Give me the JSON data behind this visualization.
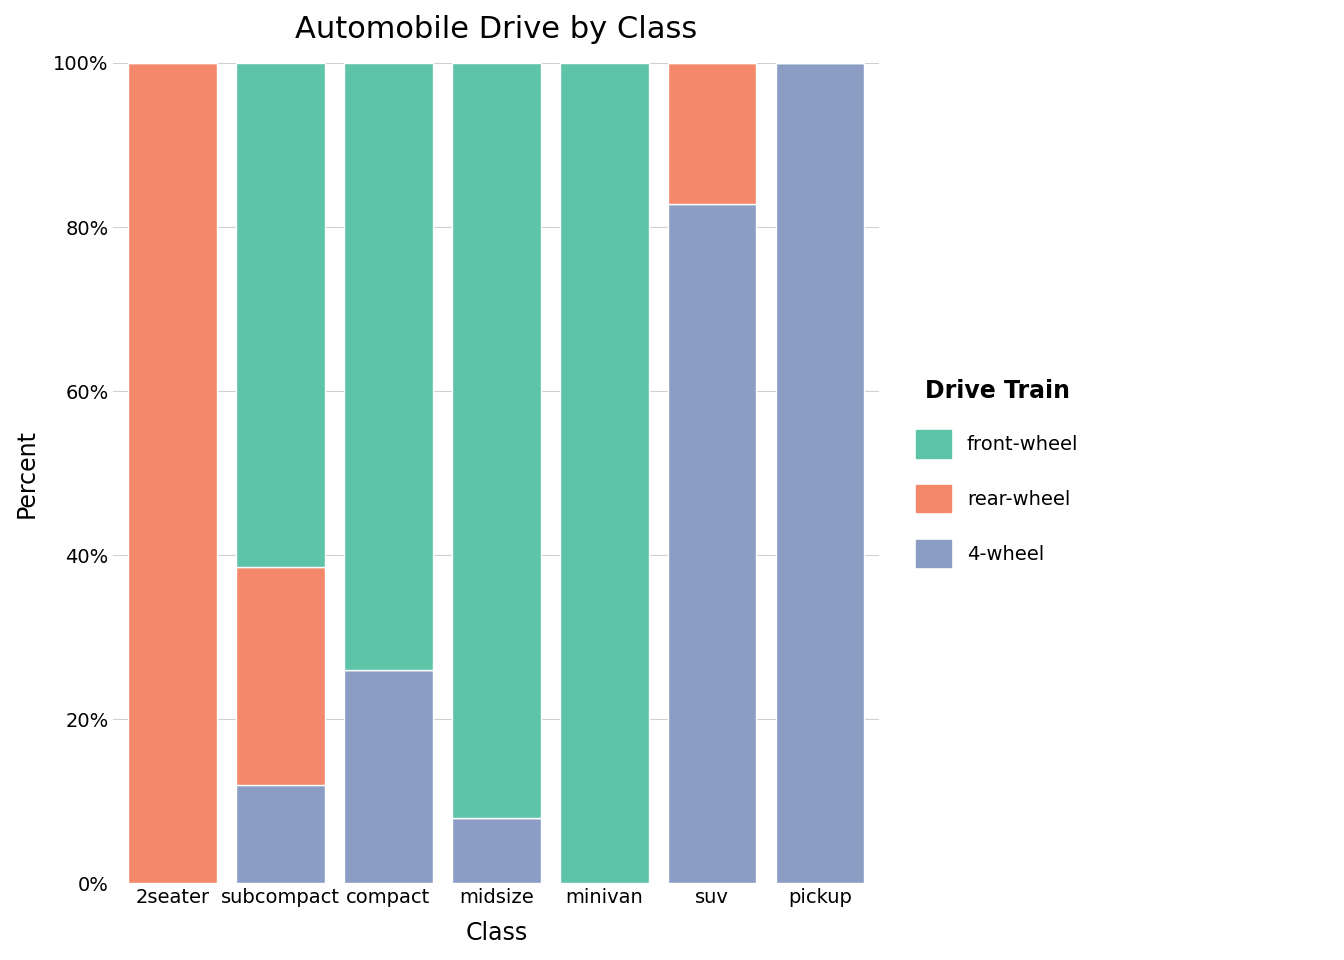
{
  "title": "Automobile Drive by Class",
  "xlabel": "Class",
  "ylabel": "Percent",
  "categories": [
    "2seater",
    "subcompact",
    "compact",
    "midsize",
    "minivan",
    "suv",
    "pickup"
  ],
  "segments": {
    "front-wheel": [
      0.0,
      0.615,
      0.74,
      0.92,
      1.0,
      0.0,
      0.0
    ],
    "rear-wheel": [
      1.0,
      0.265,
      0.0,
      0.0,
      0.0,
      0.172,
      0.0
    ],
    "4-wheel": [
      0.0,
      0.12,
      0.26,
      0.08,
      0.0,
      0.828,
      1.0
    ]
  },
  "colors": {
    "front-wheel": "#5EC4A8",
    "rear-wheel": "#F4886A",
    "4-wheel": "#8B9DC3"
  },
  "stack_order": [
    "4-wheel",
    "rear-wheel",
    "front-wheel"
  ],
  "legend_order": [
    "front-wheel",
    "rear-wheel",
    "4-wheel"
  ],
  "legend_title": "Drive Train",
  "yticks": [
    0.0,
    0.2,
    0.4,
    0.6,
    0.8,
    1.0
  ],
  "ytick_labels": [
    "0%",
    "20%",
    "40%",
    "60%",
    "80%",
    "100%"
  ],
  "background_color": "#FFFFFF",
  "grid_color": "#D0D0D0",
  "bar_width": 0.82,
  "title_fontsize": 22,
  "axis_label_fontsize": 17,
  "tick_fontsize": 14,
  "legend_fontsize": 14,
  "legend_title_fontsize": 17
}
